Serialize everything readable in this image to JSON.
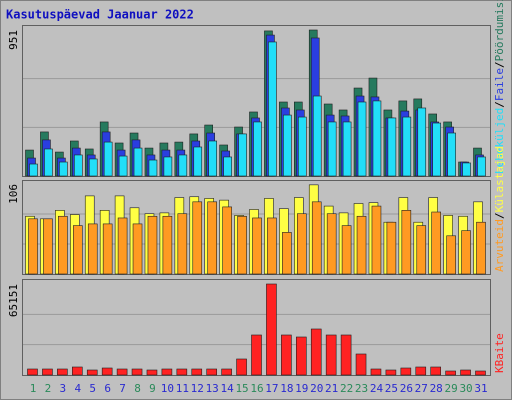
{
  "chart_data": [
    {
      "type": "bar",
      "title": "Kasutuspäevad Jaanuar 2022",
      "legend_separator": "/",
      "ylim": [
        0,
        951
      ],
      "yticks": [
        951
      ],
      "series": [
        {
          "name": "Pöördumisi",
          "color": "#267a5e",
          "values": [
            169,
            287,
            156,
            228,
            176,
            352,
            215,
            280,
            182,
            215,
            221,
            274,
            332,
            202,
            319,
            417,
            945,
            482,
            482,
            951,
            469,
            430,
            573,
            638,
            430,
            489,
            502,
            404,
            352,
            91,
            182
          ]
        },
        {
          "name": "Faile",
          "color": "#2a3ee0",
          "values": [
            117,
            235,
            117,
            182,
            137,
            287,
            169,
            235,
            137,
            169,
            169,
            228,
            280,
            163,
            274,
            378,
            918,
            443,
            430,
            899,
            397,
            391,
            521,
            515,
            378,
            423,
            430,
            352,
            319,
            91,
            137
          ]
        },
        {
          "name": "Leheküljed",
          "color": "#22def8",
          "values": [
            78,
            176,
            91,
            137,
            111,
            221,
            130,
            182,
            104,
            124,
            137,
            189,
            228,
            124,
            274,
            352,
            873,
            397,
            384,
            521,
            352,
            352,
            482,
            489,
            378,
            384,
            443,
            345,
            280,
            85,
            124
          ]
        }
      ]
    },
    {
      "type": "bar",
      "legend_separator": "/",
      "ylim": [
        0,
        106
      ],
      "yticks": [
        106
      ],
      "series": [
        {
          "name": "Külastajad",
          "color": "#ffff44",
          "values": [
            68,
            65,
            75,
            70,
            92,
            75,
            92,
            78,
            71,
            72,
            90,
            91,
            89,
            87,
            69,
            76,
            89,
            77,
            90,
            105,
            80,
            72,
            83,
            84,
            61,
            90,
            61,
            90,
            69,
            68,
            85
          ]
        },
        {
          "name": "Arvuteid",
          "color": "#ff9a22",
          "values": [
            65,
            65,
            68,
            57,
            59,
            59,
            66,
            59,
            68,
            68,
            71,
            85,
            85,
            79,
            68,
            66,
            66,
            49,
            71,
            85,
            71,
            57,
            68,
            80,
            61,
            75,
            57,
            73,
            45,
            51,
            61
          ]
        }
      ]
    },
    {
      "type": "bar",
      "ylim": [
        0,
        65151
      ],
      "yticks": [
        65151
      ],
      "categories": [
        "1",
        "2",
        "3",
        "4",
        "5",
        "6",
        "7",
        "8",
        "9",
        "10",
        "11",
        "12",
        "13",
        "14",
        "15",
        "16",
        "17",
        "18",
        "19",
        "20",
        "21",
        "22",
        "23",
        "24",
        "25",
        "26",
        "27",
        "28",
        "29",
        "30",
        "31"
      ],
      "category_colors": [
        "#2a8a5a",
        "#2a8a5a",
        "#2a2ad0",
        "#2a2ad0",
        "#2a2ad0",
        "#2a2ad0",
        "#2a2ad0",
        "#2a8a5a",
        "#2a8a5a",
        "#2a2ad0",
        "#2a2ad0",
        "#2a2ad0",
        "#2a2ad0",
        "#2a2ad0",
        "#2a8a5a",
        "#2a8a5a",
        "#2a2ad0",
        "#2a2ad0",
        "#2a2ad0",
        "#2a2ad0",
        "#2a2ad0",
        "#2a8a5a",
        "#2a8a5a",
        "#2a2ad0",
        "#2a2ad0",
        "#2a2ad0",
        "#2a2ad0",
        "#2a2ad0",
        "#2a8a5a",
        "#2a8a5a",
        "#2a2ad0"
      ],
      "series": [
        {
          "name": "KBaite",
          "color": "#ff2222",
          "values": [
            4296,
            4296,
            4296,
            5728,
            3580,
            5012,
            4296,
            4296,
            3580,
            4296,
            4296,
            4296,
            4296,
            4296,
            11456,
            28640,
            65151,
            28640,
            27208,
            32936,
            28640,
            28640,
            15036,
            4296,
            3580,
            5012,
            5728,
            5728,
            2864,
            3580,
            2864
          ]
        }
      ]
    }
  ]
}
